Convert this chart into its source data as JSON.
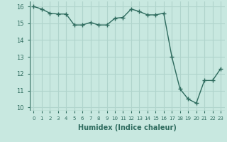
{
  "x": [
    0,
    1,
    2,
    3,
    4,
    5,
    6,
    7,
    8,
    9,
    10,
    11,
    12,
    13,
    14,
    15,
    16,
    17,
    18,
    19,
    20,
    21,
    22,
    23
  ],
  "y": [
    16.0,
    15.85,
    15.6,
    15.55,
    15.55,
    14.9,
    14.9,
    15.05,
    14.9,
    14.9,
    15.3,
    15.35,
    15.85,
    15.7,
    15.5,
    15.5,
    15.6,
    13.0,
    11.1,
    10.5,
    10.25,
    11.6,
    11.6,
    12.3
  ],
  "line_color": "#2e6b5e",
  "marker": "+",
  "marker_size": 4,
  "line_width": 1.0,
  "bg_color": "#c8e8e0",
  "grid_color": "#b0d4cc",
  "xlabel": "Humidex (Indice chaleur)",
  "xlabel_fontsize": 7,
  "tick_color": "#2e6b5e",
  "label_color": "#2e6b5e",
  "ylim": [
    9.8,
    16.3
  ],
  "xlim": [
    -0.5,
    23.5
  ],
  "yticks": [
    10,
    11,
    12,
    13,
    14,
    15,
    16
  ],
  "xticks": [
    0,
    1,
    2,
    3,
    4,
    5,
    6,
    7,
    8,
    9,
    10,
    11,
    12,
    13,
    14,
    15,
    16,
    17,
    18,
    19,
    20,
    21,
    22,
    23
  ]
}
